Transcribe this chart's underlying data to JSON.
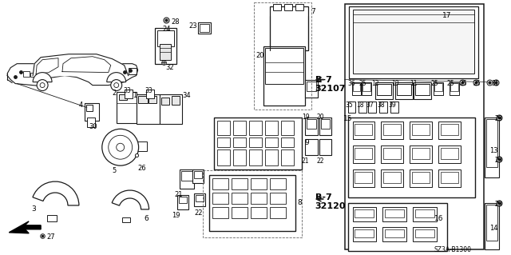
{
  "background_color": "#ffffff",
  "line_color": "#1a1a1a",
  "text_color": "#000000",
  "diagram_ref": "SZ3A-B1300",
  "figwidth": 6.4,
  "figheight": 3.19,
  "dpi": 100
}
